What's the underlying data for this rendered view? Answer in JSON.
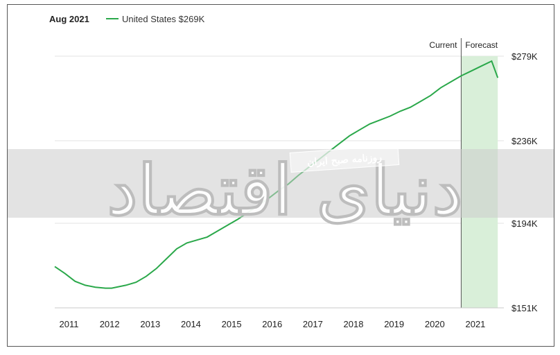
{
  "chart_data": {
    "type": "line",
    "title": "",
    "legend": {
      "date_label": "Aug 2021",
      "series_label": "United States $269K",
      "placement": "top-left"
    },
    "xlabel": "",
    "ylabel": "",
    "x_ticks": [
      "2011",
      "2012",
      "2013",
      "2014",
      "2015",
      "2016",
      "2017",
      "2018",
      "2019",
      "2020",
      "2021"
    ],
    "y_ticks": [
      "$151K",
      "$194K",
      "$236K",
      "$279K"
    ],
    "y_tick_values": [
      151,
      194,
      236,
      279
    ],
    "ylim": [
      151,
      279
    ],
    "xlim": [
      2010.75,
      2021.8
    ],
    "grid": "horizontal",
    "current_label": "Current",
    "forecast_label": "Forecast",
    "forecast_range": [
      2020.75,
      2021.65
    ],
    "colors": {
      "line": "#2aa84a",
      "forecast_band": "#d9efd9",
      "grid": "#e3e3e3"
    },
    "series": [
      {
        "name": "United States",
        "x": [
          2010.75,
          2011.0,
          2011.25,
          2011.5,
          2011.75,
          2012.0,
          2012.15,
          2012.5,
          2012.75,
          2013.0,
          2013.25,
          2013.5,
          2013.75,
          2014.0,
          2014.25,
          2014.5,
          2014.75,
          2015.0,
          2015.25,
          2015.5,
          2015.75,
          2016.0,
          2016.25,
          2016.5,
          2016.75,
          2017.0,
          2017.25,
          2017.5,
          2017.75,
          2018.0,
          2018.25,
          2018.5,
          2018.75,
          2019.0,
          2019.25,
          2019.5,
          2019.75,
          2020.0,
          2020.25,
          2020.5,
          2020.75,
          2021.0,
          2021.25,
          2021.5,
          2021.65
        ],
        "values": [
          172,
          168.5,
          164.5,
          162.5,
          161.5,
          161,
          161,
          162.5,
          164,
          167,
          171,
          176,
          181,
          184,
          185.5,
          187,
          190,
          193,
          196,
          199.5,
          203,
          206.5,
          210.5,
          214,
          218.5,
          222.5,
          226.5,
          230.5,
          234.5,
          238.5,
          241.5,
          244.5,
          246.5,
          248.5,
          251,
          253,
          256,
          259,
          263,
          266,
          269,
          271.5,
          274,
          276.5,
          268
        ]
      }
    ]
  },
  "watermark": {
    "main_text": "دنیای اقتصاد",
    "sub_text": "روزنامه صبح ایران"
  }
}
